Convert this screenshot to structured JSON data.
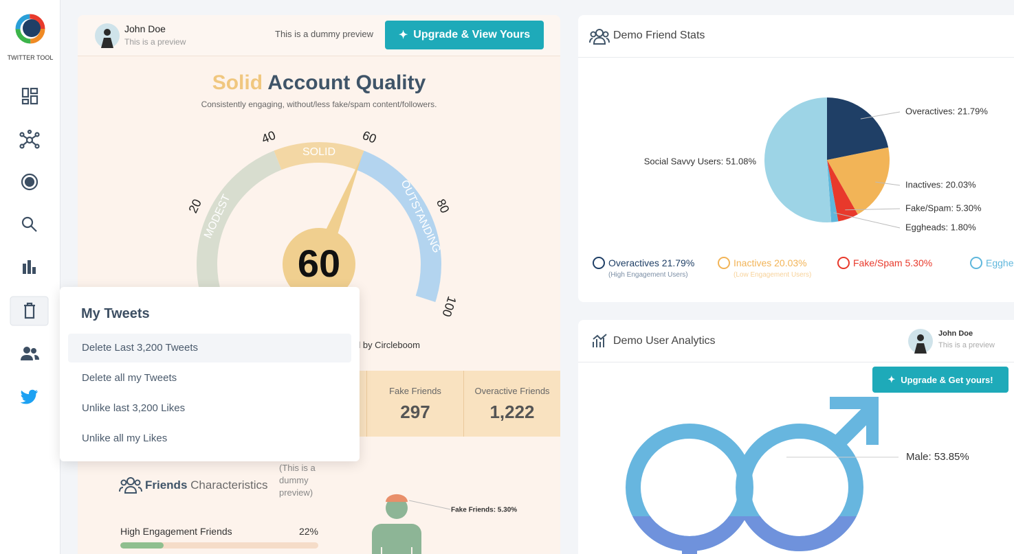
{
  "sidebar": {
    "logo_text": "TWITTER TOOL"
  },
  "preview_card": {
    "user": {
      "name": "John Doe",
      "note": "This is a preview"
    },
    "dummy_note": "This is a dummy preview",
    "button": "Upgrade & View Yours",
    "title_highlight": "Solid",
    "title": "Account Quality",
    "subtitle": "Consistently engaging, without/less fake/spam content/followers.",
    "gauge": {
      "value": 60,
      "range": [
        0,
        100
      ],
      "ticks": [
        20,
        40,
        60,
        80,
        100
      ],
      "zones": [
        "MODEST",
        "SOLID",
        "OUTSTANDING"
      ]
    },
    "credit": "d by Circleboom",
    "stats": [
      {
        "label": "Fake Friends",
        "value": "297"
      },
      {
        "label": "Overactive Friends",
        "value": "1,222"
      }
    ],
    "friends": {
      "title_bold": "Friends",
      "title": "Characteristics",
      "note": "(This is a dummy preview)",
      "bars": [
        {
          "label": "High Engagement Friends",
          "value": 22,
          "value_label": "22%"
        }
      ],
      "figure_label": "Fake Friends: 5.30%"
    }
  },
  "menu": {
    "title": "My Tweets",
    "items": [
      "Delete Last 3,200 Tweets",
      "Delete all my Tweets",
      "Unlike last 3,200 Likes",
      "Unlike all my Likes"
    ]
  },
  "friend_stats": {
    "title": "Demo Friend Stats",
    "chart_data": {
      "type": "pie",
      "values": [
        21.79,
        20.03,
        5.3,
        1.8,
        51.08
      ],
      "value_labels": [
        "Overactives: 21.79%",
        "Inactives: 20.03%",
        "Fake/Spam: 5.30%",
        "Eggheads: 1.80%",
        "Social Savvy Users: 51.08%"
      ],
      "colors": [
        "#1f3f66",
        "#f2b457",
        "#e8392b",
        "#5fb7dc",
        "#9dd4e6"
      ]
    },
    "legend": [
      {
        "label": "Overactives 21.79%",
        "note": "(High Engagement Users)",
        "color": "#1f3f66"
      },
      {
        "label": "Inactives 20.03%",
        "note": "(Low Engagement Users)",
        "color": "#f2b457"
      },
      {
        "label": "Fake/Spam 5.30%",
        "color": "#e8392b"
      },
      {
        "label": "Egghe",
        "color": "#5fb7dc"
      }
    ]
  },
  "user_analytics": {
    "title": "Demo User Analytics",
    "user": {
      "name": "John Doe",
      "note": "This is a preview"
    },
    "button": "Upgrade & Get yours!",
    "male_label": "Male: 53.85%"
  }
}
